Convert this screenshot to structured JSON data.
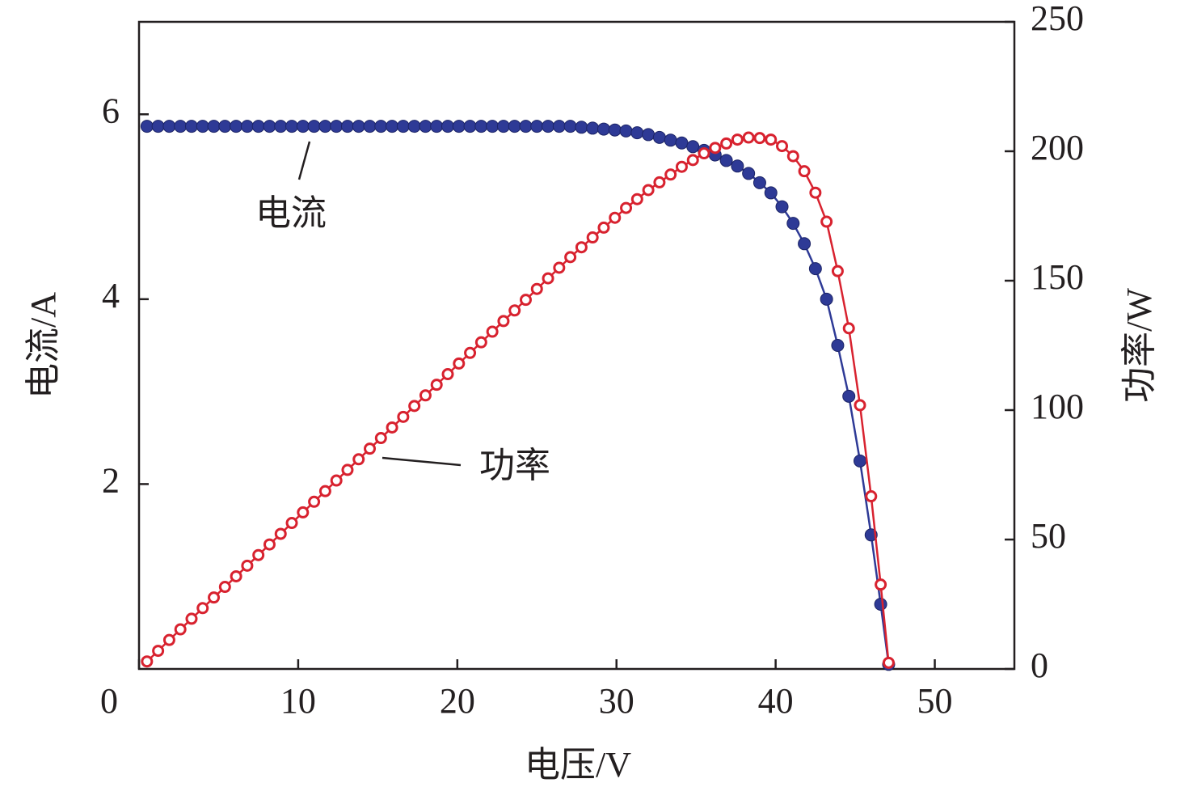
{
  "chart_data": {
    "type": "line",
    "x_label": "电压/V",
    "y_label": "电流/A",
    "y2_label": "功率/W",
    "annotations": [
      "电流",
      "功率"
    ],
    "xlim": [
      0,
      55
    ],
    "xticks": [
      0,
      10,
      20,
      30,
      40,
      50
    ],
    "ylim": [
      0,
      7
    ],
    "yticks": [
      2,
      4,
      6
    ],
    "y2lim": [
      0,
      250
    ],
    "y2ticks": [
      0,
      50,
      100,
      150,
      200,
      250
    ],
    "x": [
      0.5,
      1.2,
      1.9,
      2.6,
      3.3,
      4.0,
      4.7,
      5.4,
      6.1,
      6.8,
      7.5,
      8.2,
      8.9,
      9.6,
      10.3,
      11.0,
      11.7,
      12.4,
      13.1,
      13.8,
      14.5,
      15.2,
      15.9,
      16.6,
      17.3,
      18.0,
      18.7,
      19.4,
      20.1,
      20.8,
      21.5,
      22.2,
      22.9,
      23.6,
      24.3,
      25.0,
      25.7,
      26.4,
      27.1,
      27.8,
      28.5,
      29.2,
      29.9,
      30.6,
      31.3,
      32.0,
      32.7,
      33.4,
      34.1,
      34.8,
      35.5,
      36.2,
      36.9,
      37.6,
      38.3,
      39.0,
      39.7,
      40.4,
      41.1,
      41.8,
      42.5,
      43.2,
      43.9,
      44.6,
      45.3,
      46.0,
      46.6,
      47.1
    ],
    "series": [
      {
        "name": "电流",
        "color": "#2e3a96",
        "marker": "filled",
        "values": [
          5.87,
          5.87,
          5.87,
          5.87,
          5.87,
          5.87,
          5.87,
          5.87,
          5.87,
          5.87,
          5.87,
          5.87,
          5.87,
          5.87,
          5.87,
          5.87,
          5.87,
          5.87,
          5.87,
          5.87,
          5.87,
          5.87,
          5.87,
          5.87,
          5.87,
          5.87,
          5.87,
          5.87,
          5.87,
          5.87,
          5.87,
          5.87,
          5.87,
          5.87,
          5.87,
          5.87,
          5.87,
          5.87,
          5.87,
          5.86,
          5.85,
          5.84,
          5.83,
          5.82,
          5.8,
          5.78,
          5.75,
          5.72,
          5.69,
          5.65,
          5.61,
          5.56,
          5.5,
          5.44,
          5.36,
          5.26,
          5.15,
          5.0,
          4.82,
          4.6,
          4.33,
          4.0,
          3.5,
          2.95,
          2.25,
          1.45,
          0.7,
          0.05
        ]
      },
      {
        "name": "功率",
        "color": "#d8222f",
        "marker": "open",
        "axis": "y2",
        "values": [
          2.9,
          7.0,
          11.2,
          15.3,
          19.4,
          23.5,
          27.6,
          31.7,
          35.8,
          39.9,
          44.0,
          48.1,
          52.2,
          56.4,
          60.5,
          64.6,
          68.7,
          72.8,
          76.9,
          81.0,
          85.1,
          89.2,
          93.3,
          97.4,
          101.6,
          105.7,
          109.8,
          113.9,
          118.0,
          122.1,
          126.2,
          130.3,
          134.4,
          138.5,
          142.6,
          146.8,
          150.9,
          155.0,
          159.1,
          162.9,
          166.7,
          170.5,
          174.3,
          178.1,
          181.5,
          185.0,
          188.0,
          191.0,
          194.0,
          196.6,
          199.2,
          201.3,
          203.0,
          204.5,
          205.3,
          205.1,
          204.5,
          202.0,
          198.1,
          192.3,
          184.0,
          172.8,
          153.7,
          131.6,
          101.9,
          66.7,
          32.6,
          2.4
        ]
      }
    ]
  }
}
